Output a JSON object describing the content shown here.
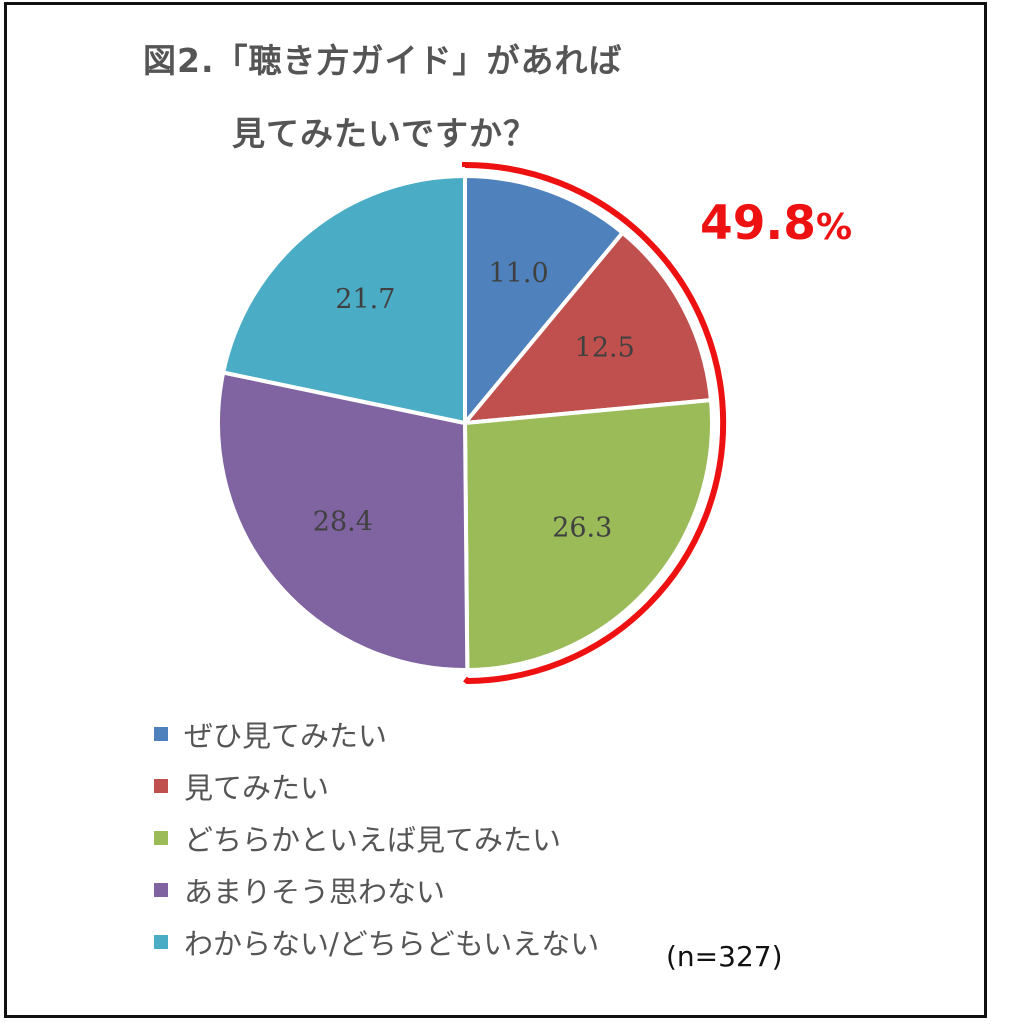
{
  "chart_data": {
    "type": "pie",
    "title_line1": "図2.「聴き方ガイド」があれば",
    "title_line2": "見てみたいですか？",
    "categories": [
      "ぜひ見てみたい",
      "見てみたい",
      "どちらかといえば見てみたい",
      "あまりそう思わない",
      "わからない/どちらどもいえない"
    ],
    "values": [
      11.0,
      12.5,
      26.3,
      28.4,
      21.7
    ],
    "value_labels": [
      "11.0",
      "12.5",
      "26.3",
      "28.4",
      "21.7"
    ],
    "colors": [
      "#4f81bd",
      "#c0504d",
      "#9bbb59",
      "#8064a2",
      "#4bacc6"
    ],
    "start_angle_deg": 0,
    "direction": "clockwise",
    "legend_position": "bottom",
    "highlight": {
      "value": "49.8",
      "unit": "%",
      "color": "#ee1111",
      "covers_categories": [
        "ぜひ見てみたい",
        "見てみたい",
        "どちらかといえば見てみたい"
      ]
    },
    "sample_note": "(n=327)"
  }
}
